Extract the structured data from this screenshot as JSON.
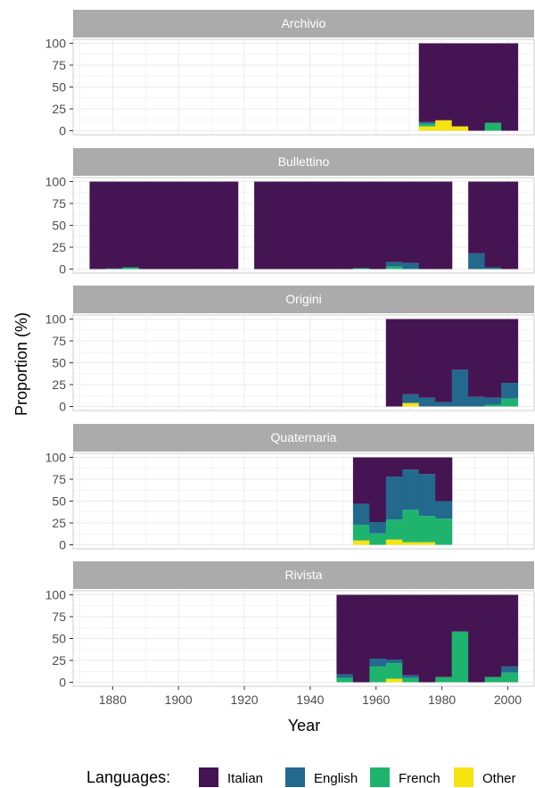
{
  "chart_data": {
    "type": "bar",
    "subtype": "stacked-histogram-facets",
    "xlabel": "Year",
    "ylabel": "Proportion (%)",
    "xlim": [
      1868,
      2008
    ],
    "ylim": [
      0,
      100
    ],
    "x_ticks": [
      1880,
      1900,
      1920,
      1940,
      1960,
      1980,
      2000
    ],
    "y_ticks": [
      0,
      25,
      50,
      75,
      100
    ],
    "bin_width": 5,
    "grid": true,
    "legend": {
      "title": "Languages:",
      "position": "bottom",
      "entries": [
        {
          "name": "Italian",
          "color": "#440154"
        },
        {
          "name": "English",
          "color": "#21908C"
        },
        {
          "name": "French",
          "color": "#22A884"
        },
        {
          "name": "Other",
          "color": "#FDE725"
        }
      ]
    },
    "colors": {
      "Italian": "#451452",
      "English": "#23698E",
      "French": "#1FB46E",
      "Other": "#F5E312",
      "strip": "#ABABAB",
      "grid": "#EBEBEB"
    },
    "facets": [
      {
        "name": "Archivio",
        "bins": [
          {
            "start": 1973,
            "other": 5,
            "french": 3,
            "english": 2
          },
          {
            "start": 1978,
            "other": 12,
            "french": 0,
            "english": 0
          },
          {
            "start": 1983,
            "other": 5,
            "french": 0,
            "english": 0
          },
          {
            "start": 1988,
            "other": 0,
            "french": 0,
            "english": 0
          },
          {
            "start": 1993,
            "other": 0,
            "french": 9,
            "english": 0
          },
          {
            "start": 1998,
            "other": 0,
            "french": 0,
            "english": 0
          }
        ]
      },
      {
        "name": "Bullettino",
        "bins": [
          {
            "start": 1873,
            "other": 0,
            "french": 0,
            "english": 0
          },
          {
            "start": 1878,
            "other": 0,
            "french": 0,
            "english": 1
          },
          {
            "start": 1883,
            "other": 0,
            "french": 2,
            "english": 0
          },
          {
            "start": 1888,
            "other": 0,
            "french": 0,
            "english": 0
          },
          {
            "start": 1893,
            "other": 0,
            "french": 0,
            "english": 0
          },
          {
            "start": 1898,
            "other": 0,
            "french": 0,
            "english": 0
          },
          {
            "start": 1903,
            "other": 0,
            "french": 0,
            "english": 0
          },
          {
            "start": 1908,
            "other": 0,
            "french": 0,
            "english": 0
          },
          {
            "start": 1913,
            "other": 0,
            "french": 0,
            "english": 0
          },
          {
            "start": 1923,
            "other": 0,
            "french": 0,
            "english": 0
          },
          {
            "start": 1928,
            "other": 0,
            "french": 0,
            "english": 0
          },
          {
            "start": 1933,
            "other": 0,
            "french": 0,
            "english": 0
          },
          {
            "start": 1938,
            "other": 0,
            "french": 0,
            "english": 0
          },
          {
            "start": 1943,
            "other": 0,
            "french": 0,
            "english": 0
          },
          {
            "start": 1948,
            "other": 0,
            "french": 0,
            "english": 0
          },
          {
            "start": 1953,
            "other": 0,
            "french": 1,
            "english": 0
          },
          {
            "start": 1958,
            "other": 0,
            "french": 0,
            "english": 0
          },
          {
            "start": 1963,
            "other": 0,
            "french": 3,
            "english": 5
          },
          {
            "start": 1968,
            "other": 0,
            "french": 0,
            "english": 7
          },
          {
            "start": 1973,
            "other": 0,
            "french": 0,
            "english": 0
          },
          {
            "start": 1978,
            "other": 0,
            "french": 0,
            "english": 0
          },
          {
            "start": 1988,
            "other": 0,
            "french": 0,
            "english": 18
          },
          {
            "start": 1993,
            "other": 0,
            "french": 0,
            "english": 2
          },
          {
            "start": 1998,
            "other": 0,
            "french": 0,
            "english": 0
          }
        ]
      },
      {
        "name": "Origini",
        "bins": [
          {
            "start": 1963,
            "other": 0,
            "french": 0,
            "english": 0
          },
          {
            "start": 1968,
            "other": 4,
            "french": 0,
            "english": 10
          },
          {
            "start": 1973,
            "other": 0,
            "french": 0,
            "english": 10
          },
          {
            "start": 1978,
            "other": 0,
            "french": 0,
            "english": 5
          },
          {
            "start": 1983,
            "other": 0,
            "french": 0,
            "english": 42
          },
          {
            "start": 1988,
            "other": 0,
            "french": 0,
            "english": 11
          },
          {
            "start": 1993,
            "other": 0,
            "french": 2,
            "english": 8
          },
          {
            "start": 1998,
            "other": 0,
            "french": 9,
            "english": 18
          }
        ]
      },
      {
        "name": "Quaternaria",
        "bins": [
          {
            "start": 1953,
            "other": 5,
            "french": 18,
            "english": 24
          },
          {
            "start": 1958,
            "other": 0,
            "french": 13,
            "english": 13
          },
          {
            "start": 1963,
            "other": 6,
            "french": 23,
            "english": 49
          },
          {
            "start": 1968,
            "other": 3,
            "french": 37,
            "english": 46
          },
          {
            "start": 1973,
            "other": 3,
            "french": 30,
            "english": 48
          },
          {
            "start": 1978,
            "other": 0,
            "french": 30,
            "english": 20
          }
        ]
      },
      {
        "name": "Rivista",
        "bins": [
          {
            "start": 1948,
            "other": 0,
            "french": 5,
            "english": 4
          },
          {
            "start": 1953,
            "other": 0,
            "french": 0,
            "english": 0
          },
          {
            "start": 1958,
            "other": 0,
            "french": 18,
            "english": 9
          },
          {
            "start": 1963,
            "other": 4,
            "french": 18,
            "english": 4
          },
          {
            "start": 1968,
            "other": 0,
            "french": 5,
            "english": 3
          },
          {
            "start": 1973,
            "other": 0,
            "french": 0,
            "english": 0
          },
          {
            "start": 1978,
            "other": 0,
            "french": 6,
            "english": 0
          },
          {
            "start": 1983,
            "other": 0,
            "french": 58,
            "english": 0
          },
          {
            "start": 1988,
            "other": 0,
            "french": 0,
            "english": 0
          },
          {
            "start": 1993,
            "other": 0,
            "french": 6,
            "english": 0
          },
          {
            "start": 1998,
            "other": 0,
            "french": 11,
            "english": 7
          }
        ]
      }
    ]
  }
}
